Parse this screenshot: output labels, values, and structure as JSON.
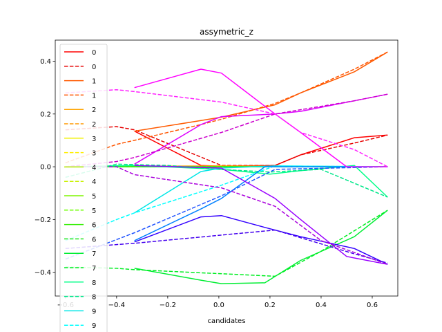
{
  "chart_data": {
    "type": "line",
    "title": "assymetric_z",
    "xlabel": "candidates",
    "ylabel": "",
    "xlim": [
      -0.64,
      0.7
    ],
    "ylim": [
      -0.49,
      0.48
    ],
    "xticks": [
      -0.6,
      -0.4,
      -0.2,
      0.0,
      0.2,
      0.4,
      0.6
    ],
    "xtick_labels": [
      "−0.6",
      "−0.4",
      "−0.2",
      "0.0",
      "0.2",
      "0.4",
      "0.6"
    ],
    "yticks": [
      -0.4,
      -0.2,
      0.0,
      0.2,
      0.4
    ],
    "ytick_labels": [
      "−0.4",
      "−0.2",
      "0.0",
      "0.2",
      "0.4"
    ],
    "grid": false,
    "legend_placement": "upper-left",
    "series": [
      {
        "name": "0",
        "color": "#ff0000",
        "style": "solid",
        "x": [
          -0.33,
          -0.07,
          0.01,
          0.22,
          0.32,
          0.53,
          0.66
        ],
        "y": [
          0.135,
          0.005,
          0.002,
          0.005,
          0.045,
          0.11,
          0.12
        ]
      },
      {
        "name": "0",
        "color": "#e60000",
        "style": "dashed",
        "x": [
          -0.6,
          -0.4,
          -0.33,
          0.01,
          0.22,
          0.32,
          0.53,
          0.66
        ],
        "y": [
          0.14,
          0.152,
          0.14,
          0.005,
          0.005,
          0.045,
          0.09,
          0.12
        ]
      },
      {
        "name": "1",
        "color": "#ff5a00",
        "style": "solid",
        "x": [
          -0.33,
          -0.07,
          0.01,
          0.22,
          0.32,
          0.53,
          0.66
        ],
        "y": [
          0.135,
          0.175,
          0.188,
          0.235,
          0.28,
          0.36,
          0.435
        ]
      },
      {
        "name": "1",
        "color": "#ff5500",
        "style": "dashed",
        "x": [
          -0.6,
          -0.4,
          -0.33,
          -0.07,
          0.01,
          0.22,
          0.32,
          0.53,
          0.66
        ],
        "y": [
          0.015,
          0.085,
          0.1,
          0.16,
          0.18,
          0.24,
          0.28,
          0.37,
          0.435
        ]
      },
      {
        "name": "2",
        "color": "#ffa500",
        "style": "solid",
        "x": [
          -0.6,
          -0.33,
          0.01,
          0.22,
          0.66
        ],
        "y": [
          0.0,
          0.002,
          0.003,
          0.002,
          0.0
        ]
      },
      {
        "name": "2",
        "color": "#ff9900",
        "style": "dashed",
        "x": [
          -0.6,
          -0.33,
          0.01,
          0.22,
          0.66
        ],
        "y": [
          0.0,
          0.0,
          0.0,
          0.0,
          0.0
        ]
      },
      {
        "name": "3",
        "color": "#f2f200",
        "style": "solid",
        "x": [
          -0.6,
          0.66
        ],
        "y": [
          0.0,
          0.0
        ]
      },
      {
        "name": "3",
        "color": "#ffee00",
        "style": "dashed",
        "x": [
          -0.6,
          0.66
        ],
        "y": [
          0.0,
          0.0
        ]
      },
      {
        "name": "4",
        "color": "#b5ea00",
        "style": "solid",
        "x": [
          -0.6,
          0.66
        ],
        "y": [
          0.0,
          0.0
        ]
      },
      {
        "name": "4",
        "color": "#c8f000",
        "style": "dashed",
        "x": [
          -0.6,
          0.66
        ],
        "y": [
          0.0,
          0.0
        ]
      },
      {
        "name": "5",
        "color": "#7ef500",
        "style": "solid",
        "x": [
          -0.6,
          0.66
        ],
        "y": [
          0.0,
          0.0
        ]
      },
      {
        "name": "5",
        "color": "#6dff00",
        "style": "dashed",
        "x": [
          -0.6,
          0.66
        ],
        "y": [
          0.0,
          0.0
        ]
      },
      {
        "name": "6",
        "color": "#33ee00",
        "style": "solid",
        "x": [
          -0.6,
          0.66
        ],
        "y": [
          0.0,
          0.0
        ]
      },
      {
        "name": "6",
        "color": "#1ee61e",
        "style": "dashed",
        "x": [
          -0.6,
          0.66
        ],
        "y": [
          0.0,
          0.0
        ]
      },
      {
        "name": "7",
        "color": "#00ee33",
        "style": "solid",
        "x": [
          -0.33,
          -0.07,
          0.01,
          0.18,
          0.32,
          0.53,
          0.66
        ],
        "y": [
          -0.385,
          -0.43,
          -0.443,
          -0.44,
          -0.355,
          -0.265,
          -0.165
        ]
      },
      {
        "name": "7",
        "color": "#00ee22",
        "style": "dashed",
        "x": [
          -0.6,
          -0.4,
          -0.33,
          0.22,
          0.4,
          0.66
        ],
        "y": [
          -0.38,
          -0.385,
          -0.39,
          -0.415,
          -0.32,
          -0.165
        ]
      },
      {
        "name": "8",
        "color": "#00ff88",
        "style": "solid",
        "x": [
          -0.6,
          -0.33,
          0.01,
          0.2,
          0.32,
          0.53,
          0.66
        ],
        "y": [
          0.0,
          0.005,
          -0.01,
          -0.028,
          -0.015,
          0.005,
          -0.115
        ]
      },
      {
        "name": "8",
        "color": "#00e68a",
        "style": "dashed",
        "x": [
          -0.6,
          -0.4,
          -0.2,
          0.0,
          0.2,
          0.4,
          0.66
        ],
        "y": [
          -0.04,
          0.01,
          0.005,
          -0.01,
          -0.02,
          -0.01,
          -0.115
        ]
      },
      {
        "name": "9",
        "color": "#00e6e6",
        "style": "solid",
        "x": [
          -0.33,
          -0.07,
          0.01,
          0.22,
          0.66
        ],
        "y": [
          -0.175,
          -0.018,
          -0.005,
          0.003,
          0.0
        ]
      },
      {
        "name": "9",
        "color": "#00ffff",
        "style": "dashed",
        "x": [
          -0.6,
          -0.4,
          -0.33,
          0.01,
          0.22,
          0.66
        ],
        "y": [
          -0.28,
          -0.2,
          -0.175,
          -0.07,
          0.003,
          0.0
        ]
      },
      {
        "name": "",
        "color": "#0080ff",
        "style": "solid",
        "x": [
          -0.33,
          -0.07,
          0.01,
          0.18,
          0.66
        ],
        "y": [
          -0.28,
          -0.16,
          -0.12,
          0.0,
          0.0
        ]
      },
      {
        "name": "",
        "color": "#2255ff",
        "style": "dashed",
        "x": [
          -0.6,
          -0.33,
          0.01,
          0.22,
          0.66
        ],
        "y": [
          -0.35,
          -0.25,
          -0.11,
          -0.01,
          0.0
        ]
      },
      {
        "name": "",
        "color": "#3300ff",
        "style": "solid",
        "x": [
          -0.33,
          -0.07,
          0.01,
          0.18,
          0.32,
          0.53,
          0.66
        ],
        "y": [
          -0.285,
          -0.19,
          -0.185,
          -0.23,
          -0.265,
          -0.31,
          -0.37
        ]
      },
      {
        "name": "",
        "color": "#4400ee",
        "style": "dashed",
        "x": [
          -0.6,
          -0.4,
          -0.33,
          0.22,
          0.53,
          0.66
        ],
        "y": [
          -0.31,
          -0.295,
          -0.29,
          -0.24,
          -0.33,
          -0.365
        ]
      },
      {
        "name": "",
        "color": "#9900ff",
        "style": "solid",
        "x": [
          -0.33,
          0.01,
          0.22,
          0.32,
          0.5,
          0.66
        ],
        "y": [
          0.005,
          -0.005,
          -0.12,
          -0.2,
          -0.34,
          -0.37
        ]
      },
      {
        "name": "",
        "color": "#aa00dd",
        "style": "dashed",
        "x": [
          -0.6,
          -0.4,
          -0.33,
          0.01,
          0.22,
          0.4,
          0.66
        ],
        "y": [
          0.0,
          0.0,
          -0.03,
          -0.08,
          -0.15,
          -0.28,
          -0.37
        ]
      },
      {
        "name": "",
        "color": "#dd00ff",
        "style": "solid",
        "x": [
          -0.33,
          -0.07,
          0.01,
          0.22,
          0.32,
          0.53,
          0.66
        ],
        "y": [
          0.01,
          0.16,
          0.19,
          0.2,
          0.21,
          0.25,
          0.275
        ]
      },
      {
        "name": "",
        "color": "#cc00cc",
        "style": "dashed",
        "x": [
          -0.6,
          -0.4,
          -0.33,
          0.01,
          0.22,
          0.53,
          0.66
        ],
        "y": [
          0.0,
          0.02,
          0.035,
          0.13,
          0.2,
          0.25,
          0.275
        ]
      },
      {
        "name": "",
        "color": "#ff00ff",
        "style": "solid",
        "x": [
          -0.33,
          -0.07,
          0.01,
          0.22,
          0.32,
          0.5,
          0.66
        ],
        "y": [
          0.3,
          0.37,
          0.355,
          0.2,
          0.13,
          0.0,
          0.0
        ]
      },
      {
        "name": "",
        "color": "#ff22ff",
        "style": "dashed",
        "x": [
          -0.6,
          -0.4,
          -0.33,
          0.01,
          0.22,
          0.32,
          0.53,
          0.66
        ],
        "y": [
          0.28,
          0.292,
          0.285,
          0.245,
          0.2,
          0.13,
          0.065,
          0.0
        ]
      }
    ],
    "legend": [
      {
        "label": "0",
        "color": "#ff0000",
        "style": "solid"
      },
      {
        "label": "0",
        "color": "#e60000",
        "style": "dashed"
      },
      {
        "label": "1",
        "color": "#ff5a00",
        "style": "solid"
      },
      {
        "label": "1",
        "color": "#ff5500",
        "style": "dashed"
      },
      {
        "label": "2",
        "color": "#ffa500",
        "style": "solid"
      },
      {
        "label": "2",
        "color": "#ff9900",
        "style": "dashed"
      },
      {
        "label": "3",
        "color": "#f2f200",
        "style": "solid"
      },
      {
        "label": "3",
        "color": "#ffee00",
        "style": "dashed"
      },
      {
        "label": "4",
        "color": "#b5ea00",
        "style": "solid"
      },
      {
        "label": "4",
        "color": "#c8f000",
        "style": "dashed"
      },
      {
        "label": "5",
        "color": "#7ef500",
        "style": "solid"
      },
      {
        "label": "5",
        "color": "#6dff00",
        "style": "dashed"
      },
      {
        "label": "6",
        "color": "#33ee00",
        "style": "solid"
      },
      {
        "label": "6",
        "color": "#1ee61e",
        "style": "dashed"
      },
      {
        "label": "7",
        "color": "#00ee33",
        "style": "solid"
      },
      {
        "label": "7",
        "color": "#00ee22",
        "style": "dashed"
      },
      {
        "label": "8",
        "color": "#00ff88",
        "style": "solid"
      },
      {
        "label": "8",
        "color": "#00e68a",
        "style": "dashed"
      },
      {
        "label": "9",
        "color": "#00e6e6",
        "style": "solid"
      },
      {
        "label": "9",
        "color": "#00ffff",
        "style": "dashed"
      }
    ]
  }
}
